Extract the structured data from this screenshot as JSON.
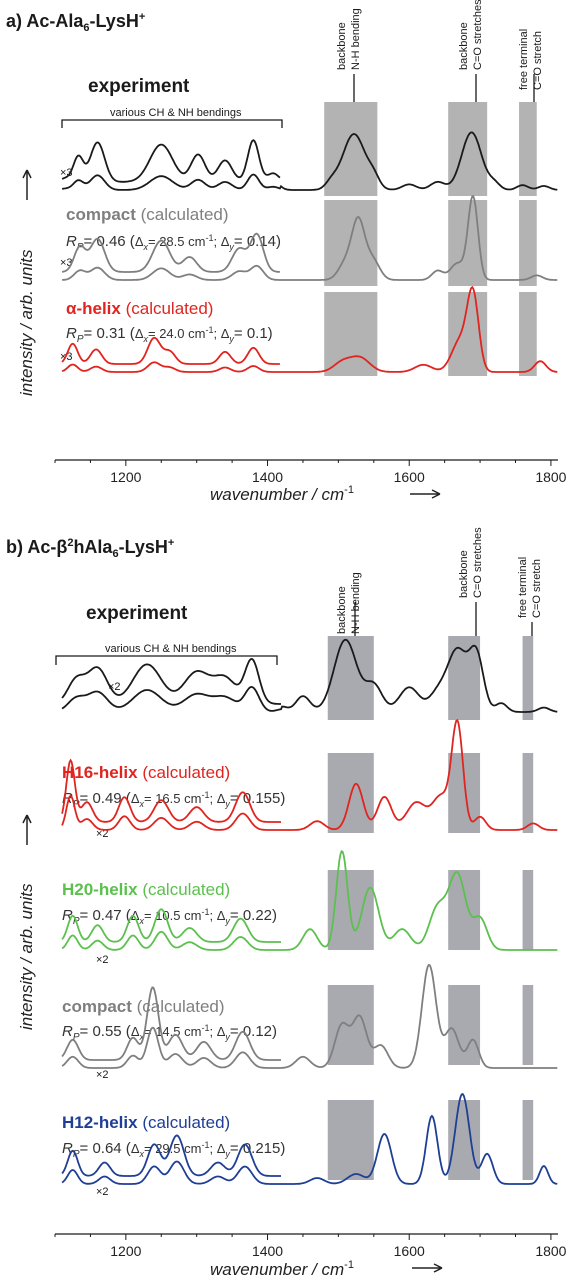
{
  "colors": {
    "black": "#1a1a1a",
    "gray": "#7f7f7f",
    "red": "#e0241f",
    "green": "#5cc04e",
    "blue": "#1f3f95",
    "band_a": "#b3b3b3",
    "band_b": "#a9aab0"
  },
  "panel_a": {
    "label": "a) Ac-Ala",
    "label_sub": "6",
    "label_tail": "-LysH",
    "label_sup": "+",
    "band_labels": [
      {
        "l1": "backbone",
        "l2": "N-H bending"
      },
      {
        "l1": "backbone",
        "l2": "C=O stretches"
      },
      {
        "l1": "free terminal",
        "l2": "C=O stretch"
      }
    ],
    "bracket_label": "various CH & NH bendings",
    "experiment_label": "experiment",
    "scale_label": "×3",
    "traces": [
      {
        "name": "compact",
        "suffix": " (calculated)",
        "rp_val": "= 0.46 (",
        "dx": "= 28.5 cm",
        "dy": "= 0.14)",
        "color": "#7f7f7f"
      },
      {
        "name": "α-helix",
        "suffix": " (calculated)",
        "rp_val": "= 0.31 (",
        "dx": "= 24.0 cm",
        "dy": "= 0.1)",
        "color": "#e0241f"
      }
    ],
    "ylabel": "intensity / arb. units",
    "xlabel": "wavenumber / cm",
    "xlabel_sup": "-1",
    "ticks": [
      "1200",
      "1400",
      "1600",
      "1800"
    ]
  },
  "panel_b": {
    "label": "b) Ac-β",
    "label_sup1": "2",
    "label_mid": "hAla",
    "label_sub": "6",
    "label_tail": "-LysH",
    "label_sup": "+",
    "band_labels": [
      {
        "l1": "backbone",
        "l2": "N-H bending"
      },
      {
        "l1": "backbone",
        "l2": "C=O stretches"
      },
      {
        "l1": "free terminal",
        "l2": "C=O stretch"
      }
    ],
    "bracket_label": "various CH & NH bendings",
    "experiment_label": "experiment",
    "scale_label": "×2",
    "traces": [
      {
        "name": "H16-helix",
        "suffix": " (calculated)",
        "rp_val": "= 0.49 (",
        "dx": "= 16.5 cm",
        "dy": "= 0.155)",
        "color": "#e0241f"
      },
      {
        "name": "H20-helix",
        "suffix": " (calculated)",
        "rp_val": "= 0.47 (",
        "dx": "= 10.5 cm",
        "dy": "= 0.22)",
        "color": "#5cc04e"
      },
      {
        "name": "compact",
        "suffix": " (calculated)",
        "rp_val": "= 0.55 (",
        "dx": "= 14.5 cm",
        "dy": "= 0.12)",
        "color": "#7f7f7f"
      },
      {
        "name": "H12-helix",
        "suffix": " (calculated)",
        "rp_val": "= 0.64 (",
        "dx": "= 29.5 cm",
        "dy": "= 0.215)",
        "color": "#1f3f95"
      }
    ],
    "ylabel": "intensity / arb. units",
    "xlabel": "wavenumber / cm",
    "xlabel_sup": "-1",
    "ticks": [
      "1200",
      "1400",
      "1600",
      "1800"
    ]
  },
  "chart_data": [
    {
      "type": "line",
      "title": "a) Ac-Ala6-LysH+",
      "xlabel": "wavenumber / cm-1",
      "ylabel": "intensity / arb. units",
      "xlim": [
        1100,
        1810
      ],
      "xticks": [
        1200,
        1400,
        1600,
        1800
      ],
      "bands": [
        [
          1480,
          1555
        ],
        [
          1655,
          1710
        ],
        [
          1755,
          1780
        ]
      ],
      "series": [
        {
          "name": "experiment",
          "color": "#1a1a1a",
          "stack": 0,
          "scale": 3,
          "peaks": [
            [
              1115,
              0.05,
              8
            ],
            [
              1133,
              0.35,
              7
            ],
            [
              1160,
              0.55,
              10
            ],
            [
              1250,
              0.52,
              16
            ],
            [
              1302,
              0.38,
              10
            ],
            [
              1340,
              0.3,
              10
            ],
            [
              1380,
              0.58,
              8
            ],
            [
              1408,
              0.12,
              8
            ],
            [
              1490,
              0.08,
              8
            ],
            [
              1522,
              0.7,
              16
            ],
            [
              1550,
              0.12,
              8
            ],
            [
              1600,
              0.07,
              10
            ],
            [
              1640,
              0.1,
              10
            ],
            [
              1688,
              0.72,
              14
            ],
            [
              1720,
              0.08,
              8
            ],
            [
              1760,
              0.06,
              8
            ],
            [
              1790,
              0.05,
              8
            ]
          ]
        },
        {
          "name": "compact",
          "color": "#7f7f7f",
          "stack": 1,
          "scale": 3,
          "peaks": [
            [
              1135,
              0.3,
              8
            ],
            [
              1160,
              0.4,
              10
            ],
            [
              1250,
              0.38,
              12
            ],
            [
              1290,
              0.18,
              10
            ],
            [
              1360,
              0.28,
              10
            ],
            [
              1385,
              0.45,
              9
            ],
            [
              1510,
              0.18,
              10
            ],
            [
              1528,
              0.62,
              9
            ],
            [
              1548,
              0.22,
              10
            ],
            [
              1640,
              0.1,
              8
            ],
            [
              1668,
              0.18,
              10
            ],
            [
              1690,
              0.9,
              7
            ],
            [
              1780,
              0.05,
              8
            ]
          ]
        },
        {
          "name": "α-helix",
          "color": "#e0241f",
          "stack": 2,
          "scale": 3,
          "peaks": [
            [
              1125,
              0.25,
              7
            ],
            [
              1158,
              0.18,
              8
            ],
            [
              1240,
              0.32,
              9
            ],
            [
              1262,
              0.15,
              8
            ],
            [
              1340,
              0.15,
              8
            ],
            [
              1380,
              0.2,
              8
            ],
            [
              1505,
              0.1,
              12
            ],
            [
              1530,
              0.16,
              14
            ],
            [
              1620,
              0.08,
              12
            ],
            [
              1672,
              0.35,
              12
            ],
            [
              1690,
              0.82,
              8
            ],
            [
              1785,
              0.12,
              8
            ]
          ]
        }
      ]
    },
    {
      "type": "line",
      "title": "b) Ac-β2hAla6-LysH+",
      "xlabel": "wavenumber / cm-1",
      "ylabel": "intensity / arb. units",
      "xlim": [
        1100,
        1810
      ],
      "xticks": [
        1200,
        1400,
        1600,
        1800
      ],
      "bands": [
        [
          1485,
          1550
        ],
        [
          1655,
          1700
        ],
        [
          1760,
          1775
        ]
      ],
      "series": [
        {
          "name": "experiment",
          "color": "#1a1a1a",
          "stack": 0,
          "scale": 2,
          "peaks": [
            [
              1130,
              0.3,
              12
            ],
            [
              1160,
              0.45,
              14
            ],
            [
              1230,
              0.5,
              20
            ],
            [
              1300,
              0.4,
              18
            ],
            [
              1340,
              0.32,
              16
            ],
            [
              1378,
              0.55,
              10
            ],
            [
              1420,
              0.06,
              8
            ],
            [
              1450,
              0.18,
              10
            ],
            [
              1510,
              0.82,
              16
            ],
            [
              1550,
              0.3,
              12
            ],
            [
              1600,
              0.28,
              14
            ],
            [
              1640,
              0.2,
              12
            ],
            [
              1668,
              0.7,
              14
            ],
            [
              1695,
              0.62,
              10
            ],
            [
              1730,
              0.1,
              8
            ],
            [
              1790,
              0.05,
              8
            ]
          ]
        },
        {
          "name": "H16-helix",
          "color": "#e0241f",
          "stack": 1,
          "scale": 2,
          "peaks": [
            [
              1122,
              0.62,
              6
            ],
            [
              1145,
              0.2,
              8
            ],
            [
              1198,
              0.25,
              8
            ],
            [
              1250,
              0.22,
              10
            ],
            [
              1300,
              0.15,
              10
            ],
            [
              1365,
              0.3,
              10
            ],
            [
              1470,
              0.08,
              10
            ],
            [
              1525,
              0.42,
              10
            ],
            [
              1565,
              0.3,
              10
            ],
            [
              1610,
              0.25,
              14
            ],
            [
              1645,
              0.3,
              12
            ],
            [
              1668,
              0.95,
              8
            ],
            [
              1700,
              0.12,
              8
            ],
            [
              1775,
              0.06,
              8
            ]
          ]
        },
        {
          "name": "H20-helix",
          "color": "#5cc04e",
          "stack": 2,
          "scale": 2,
          "peaks": [
            [
              1125,
              0.28,
              7
            ],
            [
              1160,
              0.18,
              8
            ],
            [
              1210,
              0.28,
              8
            ],
            [
              1250,
              0.35,
              9
            ],
            [
              1290,
              0.15,
              10
            ],
            [
              1362,
              0.25,
              10
            ],
            [
              1460,
              0.2,
              10
            ],
            [
              1505,
              0.95,
              8
            ],
            [
              1545,
              0.6,
              12
            ],
            [
              1590,
              0.2,
              12
            ],
            [
              1640,
              0.4,
              12
            ],
            [
              1668,
              0.72,
              12
            ],
            [
              1700,
              0.3,
              10
            ]
          ]
        },
        {
          "name": "compact",
          "color": "#7f7f7f",
          "stack": 3,
          "scale": 2,
          "peaks": [
            [
              1125,
              0.2,
              8
            ],
            [
              1210,
              0.22,
              8
            ],
            [
              1238,
              0.72,
              8
            ],
            [
              1270,
              0.25,
              10
            ],
            [
              1310,
              0.18,
              10
            ],
            [
              1365,
              0.28,
              10
            ],
            [
              1450,
              0.1,
              10
            ],
            [
              1505,
              0.38,
              10
            ],
            [
              1530,
              0.45,
              10
            ],
            [
              1560,
              0.2,
              10
            ],
            [
              1628,
              0.92,
              10
            ],
            [
              1660,
              0.35,
              10
            ],
            [
              1690,
              0.25,
              8
            ]
          ]
        },
        {
          "name": "H12-helix",
          "color": "#1f3f95",
          "stack": 4,
          "scale": 2,
          "peaks": [
            [
              1125,
              0.28,
              7
            ],
            [
              1170,
              0.15,
              8
            ],
            [
              1240,
              0.35,
              9
            ],
            [
              1272,
              0.45,
              10
            ],
            [
              1330,
              0.15,
              10
            ],
            [
              1368,
              0.35,
              10
            ],
            [
              1470,
              0.06,
              10
            ],
            [
              1525,
              0.1,
              12
            ],
            [
              1565,
              0.5,
              10
            ],
            [
              1632,
              0.68,
              8
            ],
            [
              1675,
              0.9,
              10
            ],
            [
              1710,
              0.3,
              8
            ],
            [
              1790,
              0.18,
              6
            ]
          ]
        }
      ]
    }
  ]
}
